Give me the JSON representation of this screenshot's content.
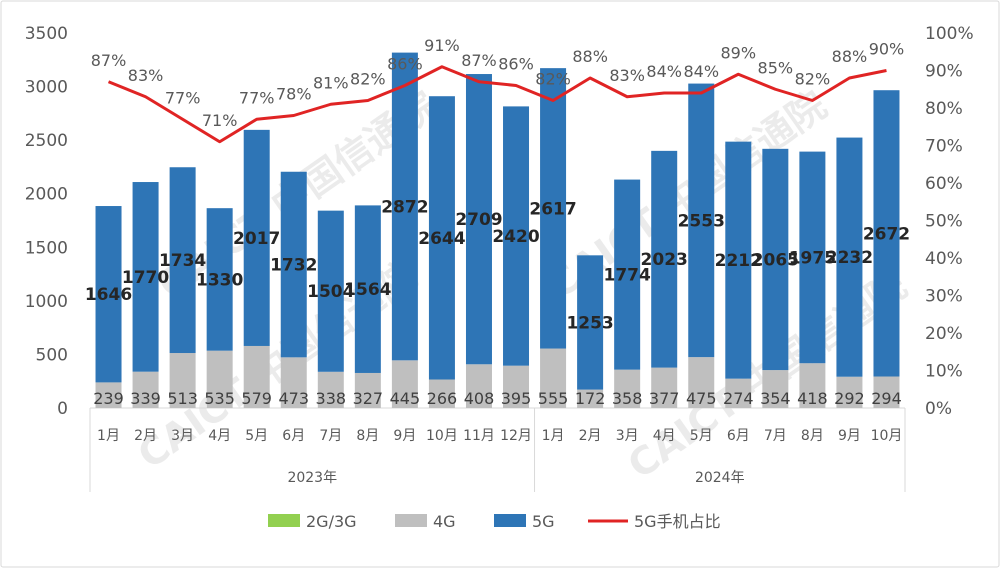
{
  "chart_data": {
    "type": "bar",
    "stacked": true,
    "categories": [
      "1月",
      "2月",
      "3月",
      "4月",
      "5月",
      "6月",
      "7月",
      "8月",
      "9月",
      "10月",
      "11月",
      "12月",
      "1月",
      "2月",
      "3月",
      "4月",
      "5月",
      "6月",
      "7月",
      "8月",
      "9月",
      "10月"
    ],
    "groups": [
      {
        "label": "2023年",
        "count": 12
      },
      {
        "label": "2024年",
        "count": 10
      }
    ],
    "series": [
      {
        "name": "2G/3G",
        "color": "#92d050",
        "values": [
          0,
          0,
          0,
          0,
          0,
          0,
          0,
          0,
          0,
          0,
          0,
          0,
          0,
          0,
          0,
          0,
          0,
          0,
          0,
          0,
          0,
          0
        ]
      },
      {
        "name": "4G",
        "color": "#bfbfbf",
        "values": [
          239,
          339,
          513,
          535,
          579,
          473,
          338,
          327,
          445,
          266,
          408,
          395,
          555,
          172,
          358,
          377,
          475,
          274,
          354,
          418,
          292,
          294
        ]
      },
      {
        "name": "5G",
        "color": "#2e75b6",
        "values": [
          1646,
          1770,
          1734,
          1330,
          2017,
          1732,
          1504,
          1564,
          2872,
          2644,
          2709,
          2420,
          2617,
          1253,
          1774,
          2023,
          2553,
          2212,
          2065,
          1975,
          2232,
          2672
        ]
      },
      {
        "name": "5G手机占比",
        "type": "line",
        "axis": "right",
        "color": "#e02424",
        "values": [
          87,
          83,
          77,
          71,
          77,
          78,
          81,
          82,
          86,
          91,
          87,
          86,
          82,
          88,
          83,
          84,
          84,
          89,
          85,
          82,
          88,
          90
        ]
      }
    ],
    "y_left": {
      "min": 0,
      "max": 3500,
      "ticks": [
        "0",
        "500",
        "1000",
        "1500",
        "2000",
        "2500",
        "3000",
        "3500"
      ]
    },
    "y_right": {
      "min": 0,
      "max": 100,
      "ticks": [
        "0%",
        "10%",
        "20%",
        "30%",
        "40%",
        "50%",
        "60%",
        "70%",
        "80%",
        "90%",
        "100%"
      ]
    },
    "labels_5g": [
      "1646",
      "1770",
      "1734",
      "1330",
      "2017",
      "1732",
      "1504",
      "1564",
      "2872",
      "2644",
      "2709",
      "2420",
      "2617",
      "1253",
      "1774",
      "2023",
      "2553",
      "2212",
      "2065",
      "1975",
      "2232",
      "2672"
    ],
    "labels_4g": [
      "239",
      "339",
      "513",
      "535",
      "579",
      "473",
      "338",
      "327",
      "445",
      "266",
      "408",
      "395",
      "555",
      "172",
      "358",
      "377",
      "475",
      "274",
      "354",
      "418",
      "292",
      "294"
    ],
    "labels_pct": [
      "87%",
      "83%",
      "77%",
      "71%",
      "77%",
      "78%",
      "81%",
      "82%",
      "86%",
      "91%",
      "87%",
      "86%",
      "82%",
      "88%",
      "83%",
      "84%",
      "84%",
      "89%",
      "85%",
      "82%",
      "88%",
      "90%"
    ],
    "legend": [
      {
        "name": "2G/3G",
        "color": "#92d050",
        "kind": "box"
      },
      {
        "name": "4G",
        "color": "#bfbfbf",
        "kind": "box"
      },
      {
        "name": "5G",
        "color": "#2e75b6",
        "kind": "box"
      },
      {
        "name": "5G手机占比",
        "color": "#e02424",
        "kind": "line"
      }
    ],
    "legend_position": "bottom",
    "grid": false
  },
  "watermark": "CAICT 中国信通院"
}
